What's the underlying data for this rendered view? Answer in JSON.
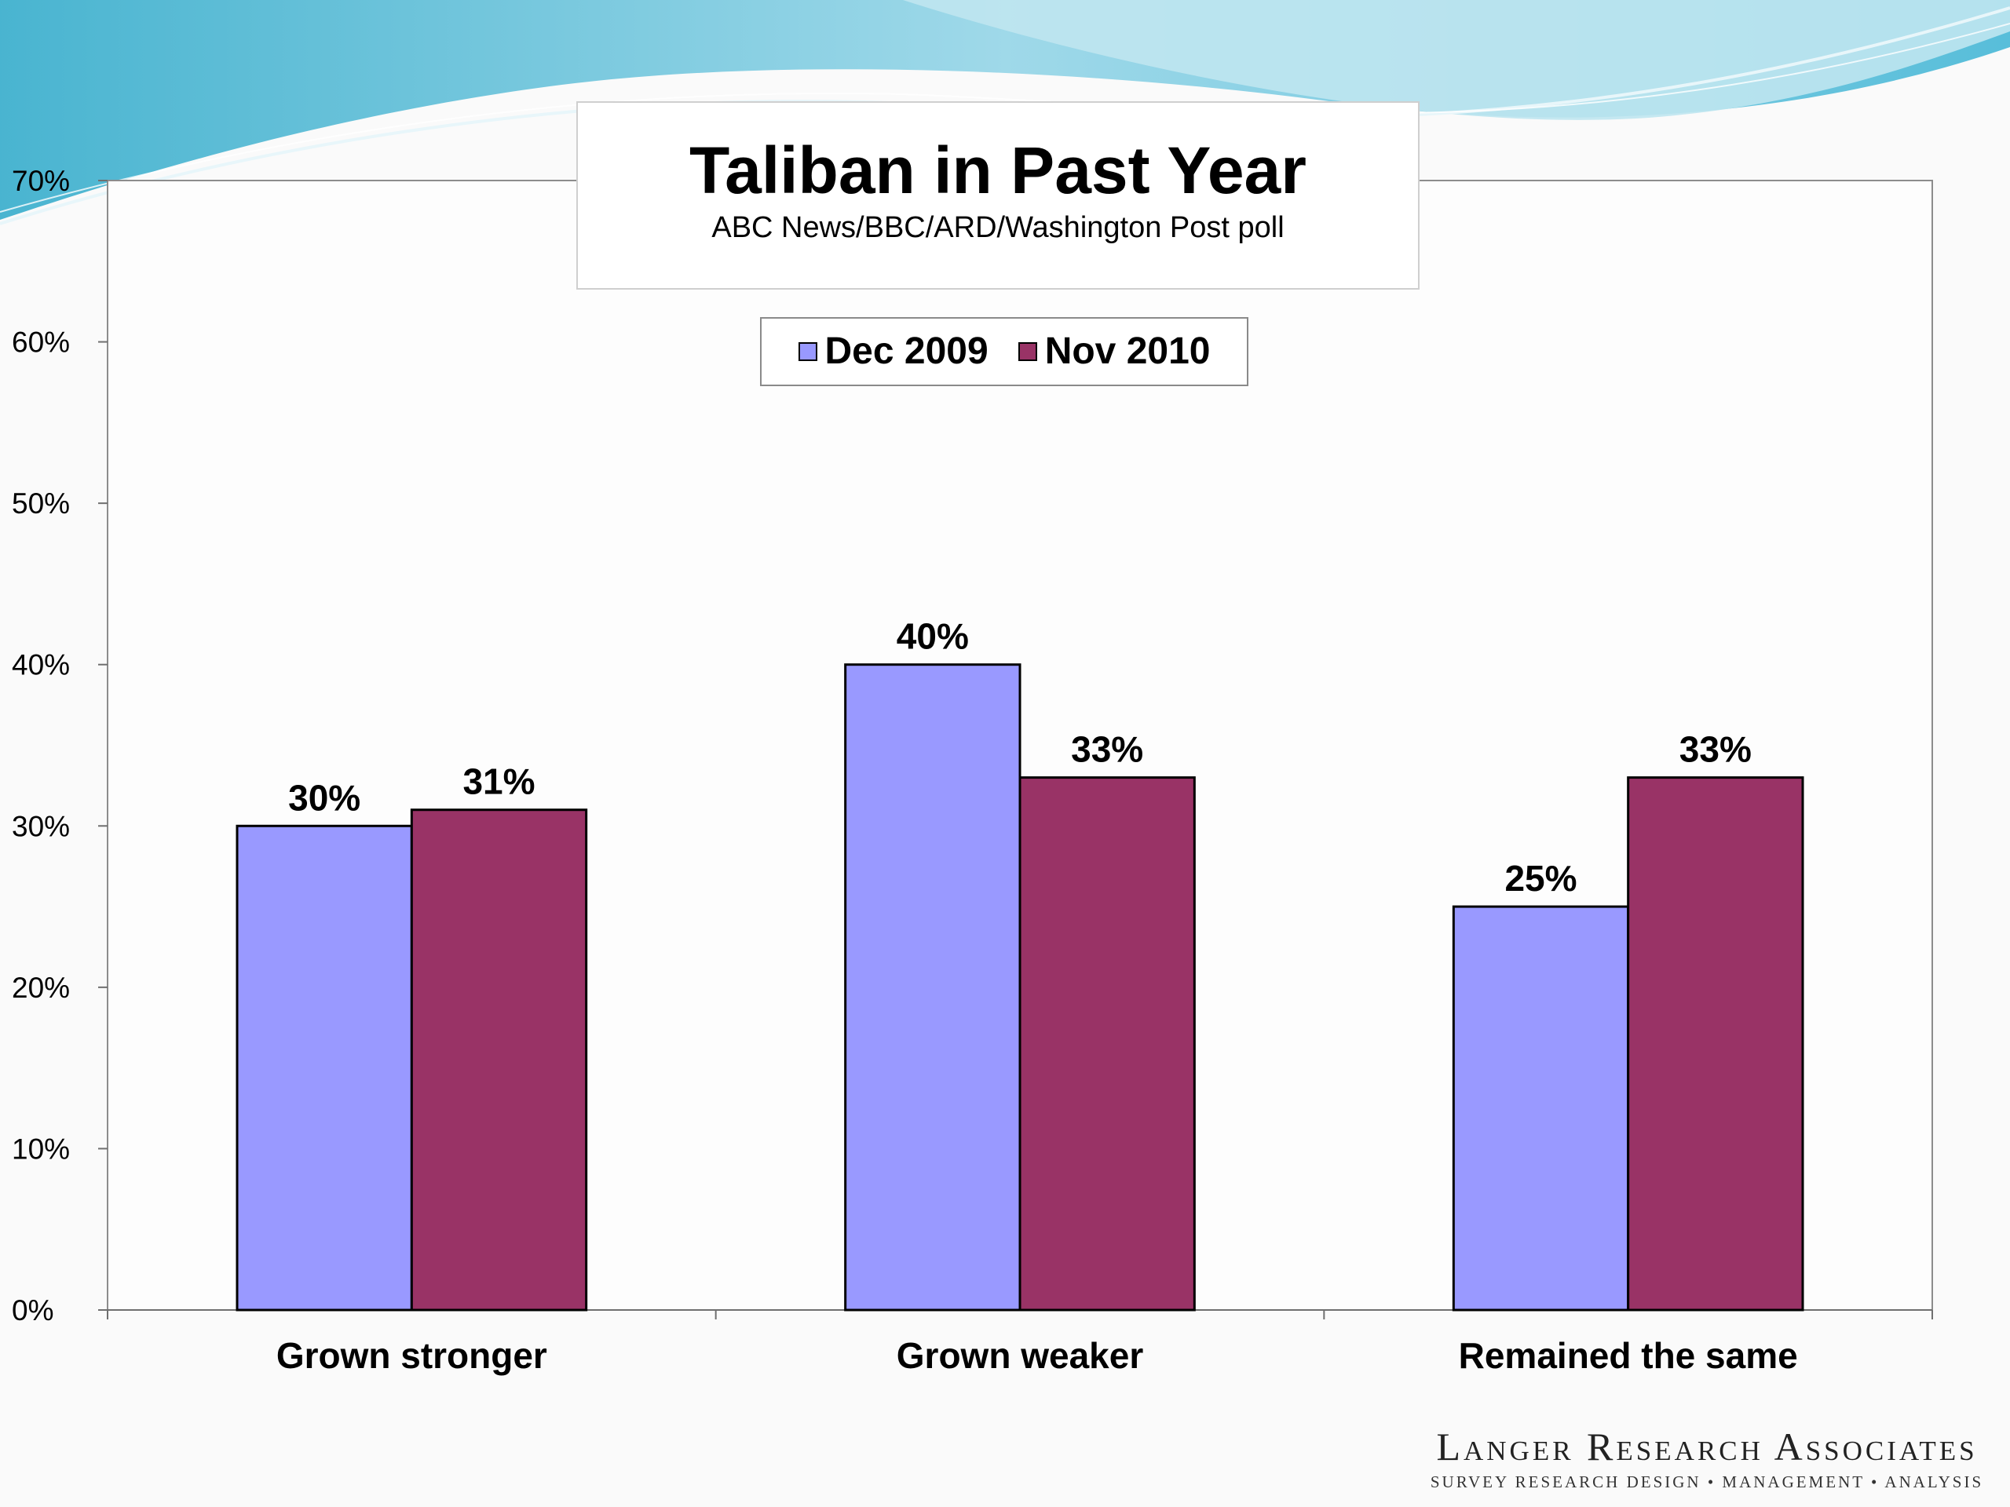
{
  "chart_data": {
    "type": "bar",
    "title": "Taliban in Past Year",
    "subtitle": "ABC News/BBC/ARD/Washington Post poll",
    "categories": [
      "Grown stronger",
      "Grown weaker",
      "Remained the same"
    ],
    "series": [
      {
        "name": "Dec 2009",
        "color": "#9999ff",
        "values": [
          30,
          40,
          25
        ],
        "labels": [
          "30%",
          "40%",
          "25%"
        ]
      },
      {
        "name": "Nov 2010",
        "color": "#993366",
        "values": [
          31,
          33,
          33
        ],
        "labels": [
          "31%",
          "33%",
          "33%"
        ]
      }
    ],
    "ylim": [
      0,
      70
    ],
    "yticks": [
      "0%",
      "10%",
      "20%",
      "30%",
      "40%",
      "50%",
      "60%",
      "70%"
    ],
    "legend_position": "top-center",
    "grid": false
  },
  "logo": {
    "name": "Langer Research Associates",
    "tagline": "SURVEY RESEARCH DESIGN • MANAGEMENT • ANALYSIS"
  }
}
